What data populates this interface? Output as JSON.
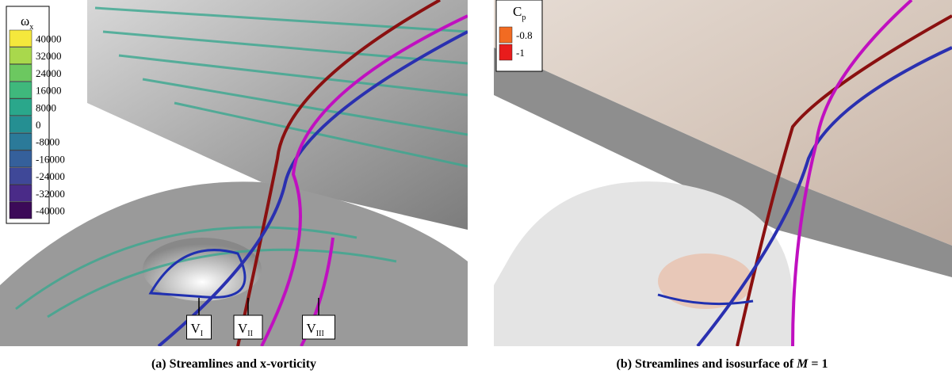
{
  "panels": [
    {
      "legend": {
        "title": "ω",
        "title_sub": "x",
        "entries": [
          {
            "label": 40000,
            "color": "#f5e83c"
          },
          {
            "label": 32000,
            "color": "#a9d84c"
          },
          {
            "label": 24000,
            "color": "#6cc860"
          },
          {
            "label": 16000,
            "color": "#3fb87c"
          },
          {
            "label": 8000,
            "color": "#2aa78b"
          },
          {
            "label": 0,
            "color": "#258f92"
          },
          {
            "label": -8000,
            "color": "#2b7a99"
          },
          {
            "label": -16000,
            "color": "#35609b"
          },
          {
            "label": -24000,
            "color": "#3f4898"
          },
          {
            "label": -32000,
            "color": "#4a2b88"
          },
          {
            "label": -40000,
            "color": "#3c0a58"
          }
        ]
      },
      "annotations": [
        {
          "base": "V",
          "sub": "I"
        },
        {
          "base": "V",
          "sub": "II"
        },
        {
          "base": "V",
          "sub": "III"
        }
      ],
      "caption": {
        "label": "(a)",
        "text": "Streamlines and x-vorticity"
      }
    },
    {
      "legend": {
        "title": "C",
        "title_sub": "p",
        "entries": [
          {
            "label": -0.8,
            "color": "#f26b22"
          },
          {
            "label": -1,
            "color": "#e81c1c"
          }
        ]
      },
      "caption": {
        "label": "(b)",
        "text": "Streamlines and isosurface of",
        "italic": "M",
        "tail": "= 1"
      }
    }
  ]
}
